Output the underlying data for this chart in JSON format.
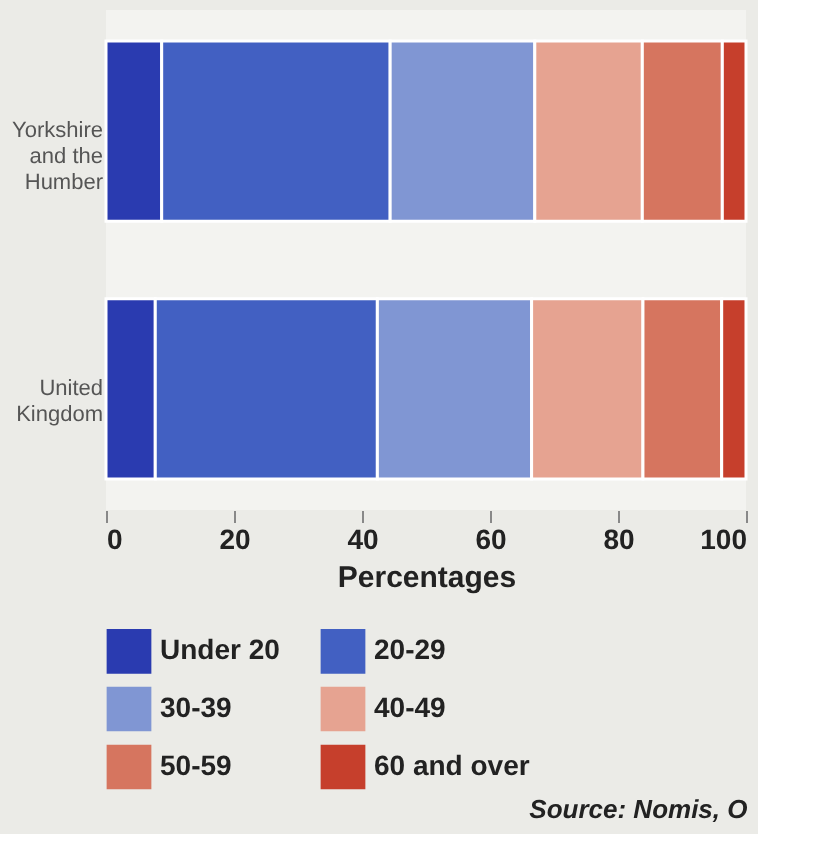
{
  "chart_data": {
    "type": "bar",
    "orientation": "horizontal",
    "stacked": true,
    "categories": [
      "Yorkshire and the Humber",
      "United Kingdom"
    ],
    "series": [
      {
        "name": "Under 20",
        "color": "#2a3bb0",
        "values": [
          8.7,
          7.7
        ]
      },
      {
        "name": "20-29",
        "color": "#4260c2",
        "values": [
          35.7,
          34.7
        ]
      },
      {
        "name": "30-39",
        "color": "#8096d3",
        "values": [
          22.6,
          24.1
        ]
      },
      {
        "name": "40-49",
        "color": "#e6a391",
        "values": [
          16.8,
          17.4
        ]
      },
      {
        "name": "50-59",
        "color": "#d6755f",
        "values": [
          12.5,
          12.3
        ]
      },
      {
        "name": "60 and over",
        "color": "#c63f2c",
        "values": [
          3.7,
          3.8
        ]
      }
    ],
    "xlabel": "Percentages",
    "xlim": [
      0,
      100
    ],
    "xticks": [
      0,
      20,
      40,
      60,
      80,
      100
    ],
    "grid": false,
    "legend": "bottom",
    "annotations": [
      "Source: Nomis, O"
    ]
  }
}
